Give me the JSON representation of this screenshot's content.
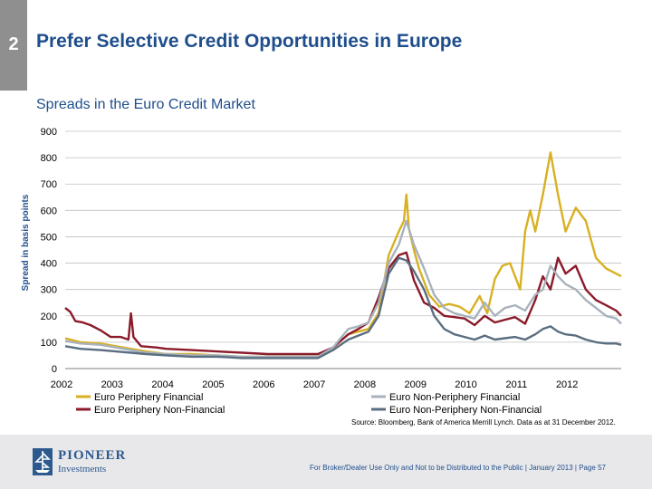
{
  "header": {
    "slide_number": "2",
    "title": "Prefer Selective Credit Opportunities in Europe"
  },
  "chart_data": {
    "type": "line",
    "title": "Spreads in the Euro Credit Market",
    "xlabel": "",
    "ylabel": "Spread in basis points",
    "ylim": [
      0,
      900
    ],
    "yticks": [
      "0",
      "100",
      "200",
      "300",
      "400",
      "500",
      "600",
      "700",
      "800",
      "900"
    ],
    "xticks": [
      "2002",
      "2003",
      "2004",
      "2005",
      "2006",
      "2007",
      "2008",
      "2009",
      "2010",
      "2011",
      "2012"
    ],
    "xlim": [
      2002.0,
      2013.0
    ],
    "series": [
      {
        "name": "Euro Periphery Financial",
        "color": "#d8b022",
        "x": [
          2002.0,
          2002.3,
          2002.7,
          2003.0,
          2003.3,
          2003.6,
          2004.0,
          2004.5,
          2005.0,
          2005.5,
          2006.0,
          2006.5,
          2007.0,
          2007.3,
          2007.6,
          2007.8,
          2008.0,
          2008.2,
          2008.4,
          2008.6,
          2008.7,
          2008.75,
          2008.8,
          2008.9,
          2009.0,
          2009.2,
          2009.4,
          2009.6,
          2009.8,
          2010.0,
          2010.2,
          2010.35,
          2010.5,
          2010.65,
          2010.8,
          2011.0,
          2011.1,
          2011.2,
          2011.3,
          2011.45,
          2011.6,
          2011.75,
          2011.9,
          2012.1,
          2012.3,
          2012.5,
          2012.7,
          2012.9,
          2013.0
        ],
        "values": [
          115,
          100,
          95,
          85,
          75,
          65,
          55,
          55,
          50,
          45,
          45,
          45,
          45,
          80,
          130,
          140,
          150,
          210,
          430,
          520,
          560,
          660,
          530,
          450,
          380,
          280,
          235,
          245,
          235,
          210,
          275,
          210,
          340,
          390,
          400,
          300,
          520,
          600,
          520,
          660,
          820,
          660,
          520,
          610,
          560,
          420,
          380,
          360,
          350
        ]
      },
      {
        "name": "Euro Periphery Non-Financial",
        "color": "#8b1a2a",
        "x": [
          2002.0,
          2002.1,
          2002.2,
          2002.35,
          2002.5,
          2002.7,
          2002.9,
          2003.1,
          2003.25,
          2003.3,
          2003.35,
          2003.5,
          2003.8,
          2004.0,
          2004.5,
          2005.0,
          2005.5,
          2006.0,
          2006.5,
          2007.0,
          2007.3,
          2007.6,
          2007.8,
          2008.0,
          2008.2,
          2008.4,
          2008.6,
          2008.75,
          2008.9,
          2009.1,
          2009.3,
          2009.5,
          2009.7,
          2009.9,
          2010.1,
          2010.3,
          2010.5,
          2010.7,
          2010.9,
          2011.1,
          2011.3,
          2011.45,
          2011.6,
          2011.75,
          2011.9,
          2012.1,
          2012.3,
          2012.5,
          2012.7,
          2012.9,
          2013.0
        ],
        "values": [
          230,
          215,
          180,
          175,
          165,
          145,
          120,
          120,
          110,
          210,
          120,
          85,
          80,
          75,
          70,
          65,
          60,
          55,
          55,
          55,
          80,
          130,
          150,
          175,
          270,
          380,
          430,
          440,
          335,
          250,
          230,
          200,
          195,
          190,
          165,
          200,
          175,
          185,
          195,
          170,
          260,
          350,
          300,
          420,
          360,
          390,
          300,
          260,
          240,
          220,
          200
        ]
      },
      {
        "name": "Euro Non-Periphery Financial",
        "color": "#a8b2bc",
        "x": [
          2002.0,
          2002.3,
          2002.7,
          2003.0,
          2003.3,
          2003.6,
          2004.0,
          2004.5,
          2005.0,
          2005.5,
          2006.0,
          2006.5,
          2007.0,
          2007.3,
          2007.6,
          2007.8,
          2008.0,
          2008.2,
          2008.4,
          2008.6,
          2008.75,
          2008.9,
          2009.1,
          2009.3,
          2009.5,
          2009.7,
          2009.9,
          2010.1,
          2010.3,
          2010.5,
          2010.7,
          2010.9,
          2011.1,
          2011.3,
          2011.45,
          2011.6,
          2011.75,
          2011.9,
          2012.1,
          2012.3,
          2012.5,
          2012.7,
          2012.9,
          2013.0
        ],
        "values": [
          105,
          95,
          90,
          80,
          70,
          60,
          55,
          50,
          50,
          45,
          45,
          45,
          45,
          80,
          150,
          160,
          175,
          250,
          400,
          470,
          560,
          470,
          380,
          280,
          230,
          210,
          200,
          190,
          250,
          200,
          230,
          240,
          220,
          280,
          300,
          390,
          350,
          320,
          300,
          260,
          230,
          200,
          190,
          170
        ]
      },
      {
        "name": "Euro Non-Periphery Non-Financial",
        "color": "#5a6e80",
        "x": [
          2002.0,
          2002.3,
          2002.7,
          2003.0,
          2003.3,
          2003.6,
          2004.0,
          2004.5,
          2005.0,
          2005.5,
          2006.0,
          2006.5,
          2007.0,
          2007.3,
          2007.6,
          2007.8,
          2008.0,
          2008.2,
          2008.4,
          2008.6,
          2008.75,
          2008.9,
          2009.1,
          2009.3,
          2009.5,
          2009.7,
          2009.9,
          2010.1,
          2010.3,
          2010.5,
          2010.7,
          2010.9,
          2011.1,
          2011.3,
          2011.45,
          2011.6,
          2011.75,
          2011.9,
          2012.1,
          2012.3,
          2012.5,
          2012.7,
          2012.9,
          2013.0
        ],
        "values": [
          85,
          75,
          70,
          65,
          60,
          55,
          50,
          45,
          45,
          40,
          40,
          40,
          40,
          70,
          110,
          125,
          140,
          200,
          360,
          420,
          410,
          370,
          300,
          200,
          150,
          130,
          120,
          110,
          125,
          110,
          115,
          120,
          110,
          130,
          150,
          160,
          140,
          130,
          125,
          110,
          100,
          95,
          95,
          90
        ]
      }
    ]
  },
  "source_note": "Source: Bloomberg, Bank of America Merrill Lynch. Data as at 31 December 2012.",
  "footer": {
    "logo_name": "PIONEER",
    "logo_sub": "Investments",
    "note": "For Broker/Dealer Use Only and Not to be Distributed to the Public | January 2013 | Page 57"
  }
}
